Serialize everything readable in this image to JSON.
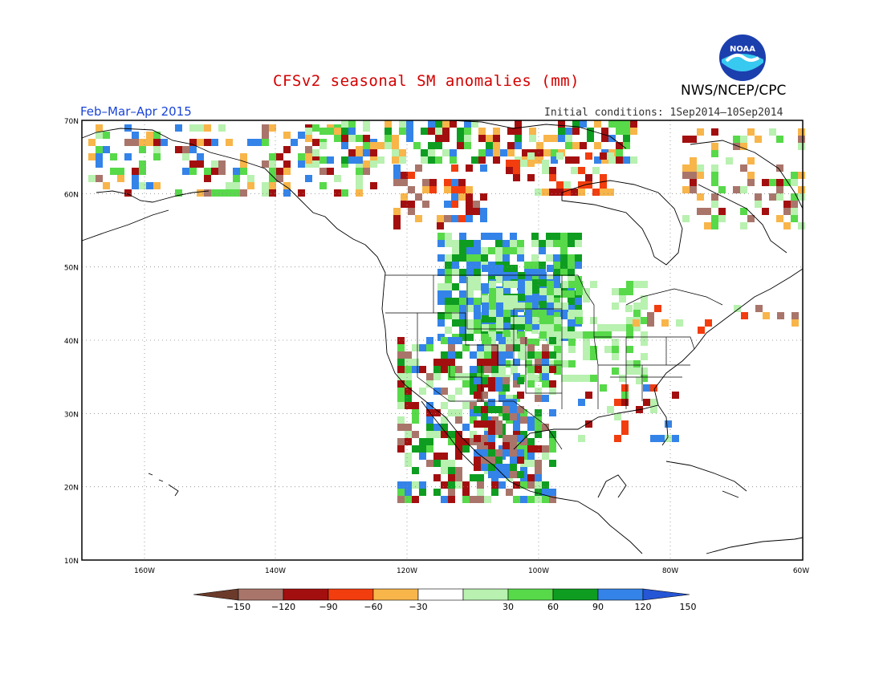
{
  "header": {
    "title": "CFSv2 seasonal SM anomalies (mm)",
    "agency": "NWS/NCEP/CPC",
    "logo_text": "NOAA",
    "period": "Feb–Mar–Apr 2015",
    "init": "Initial conditions: 1Sep2014–10Sep2014"
  },
  "map": {
    "lat_labels": [
      "70N",
      "60N",
      "50N",
      "40N",
      "30N",
      "20N",
      "10N"
    ],
    "lon_labels": [
      "160W",
      "140W",
      "120W",
      "100W",
      "80W",
      "60W"
    ],
    "lat_range": [
      10,
      70
    ],
    "lon_range": [
      -171,
      -60
    ],
    "grid": "dotted",
    "field": "soil moisture anomaly (mm)"
  },
  "legend": {
    "ticks": [
      "−150",
      "−120",
      "−90",
      "−60",
      "−30",
      "30",
      "60",
      "90",
      "120",
      "150"
    ],
    "bins": [
      {
        "range": "< −150",
        "color": "#6b3a2a"
      },
      {
        "range": "−150 to −120",
        "color": "#a9756a"
      },
      {
        "range": "−120 to −90",
        "color": "#a30f0f"
      },
      {
        "range": "−90 to −60",
        "color": "#f23d0e"
      },
      {
        "range": "−60 to −30",
        "color": "#f8b54a"
      },
      {
        "range": "−30 to 30",
        "color": "#ffffff"
      },
      {
        "range": "30 to 60",
        "color": "#b8f1b0"
      },
      {
        "range": "60 to 90",
        "color": "#57d94a"
      },
      {
        "range": "90 to 120",
        "color": "#0e9d20"
      },
      {
        "range": "120 to 150",
        "color": "#3483e8"
      },
      {
        "range": "> 150",
        "color": "#2556d6"
      }
    ]
  }
}
